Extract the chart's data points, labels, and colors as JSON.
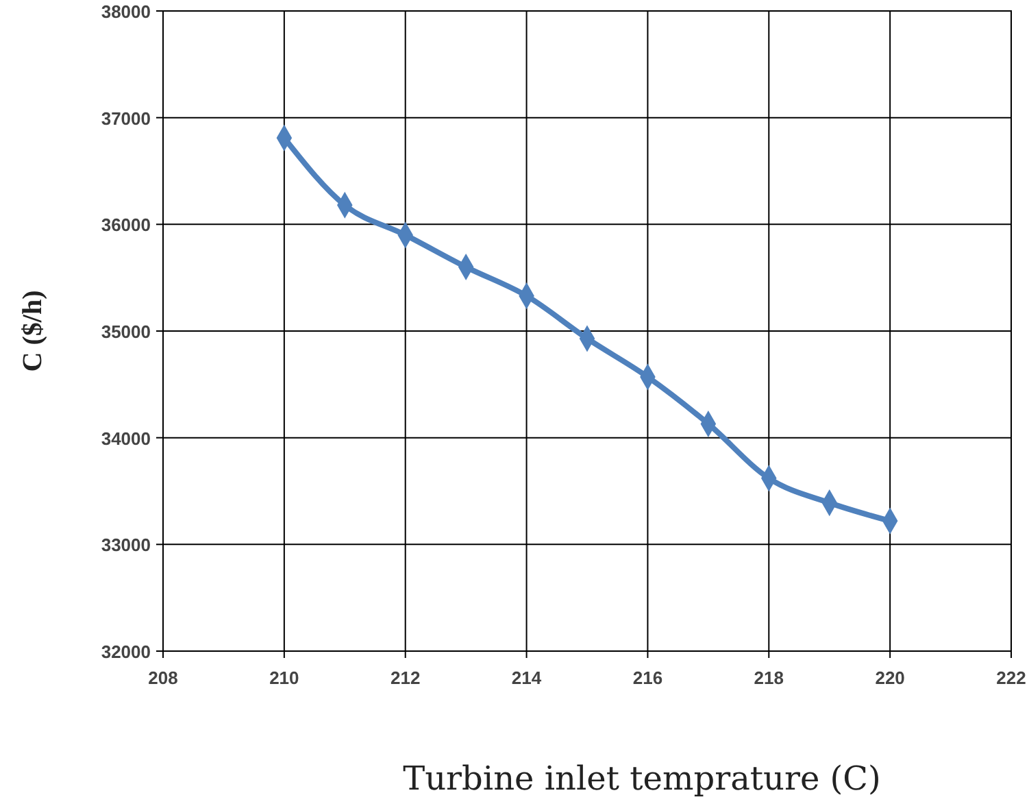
{
  "chart_data": {
    "type": "line",
    "xlabel": "Turbine inlet temprature (C)",
    "ylabel": "C ($/h)",
    "x": [
      210,
      211,
      212,
      213,
      214,
      215,
      216,
      217,
      218,
      219,
      220
    ],
    "series": [
      {
        "color": "#4f81bd",
        "values": [
          36810,
          36180,
          35900,
          35600,
          35330,
          34930,
          34570,
          34130,
          33620,
          33390,
          33220
        ]
      }
    ],
    "xlim": [
      208,
      222
    ],
    "xticks": [
      208,
      210,
      212,
      214,
      216,
      218,
      220,
      222
    ],
    "ylim": [
      32000,
      38000
    ],
    "yticks": [
      32000,
      33000,
      34000,
      35000,
      36000,
      37000,
      38000
    ],
    "grid": true,
    "marker": "diamond",
    "line_style": "solid"
  }
}
